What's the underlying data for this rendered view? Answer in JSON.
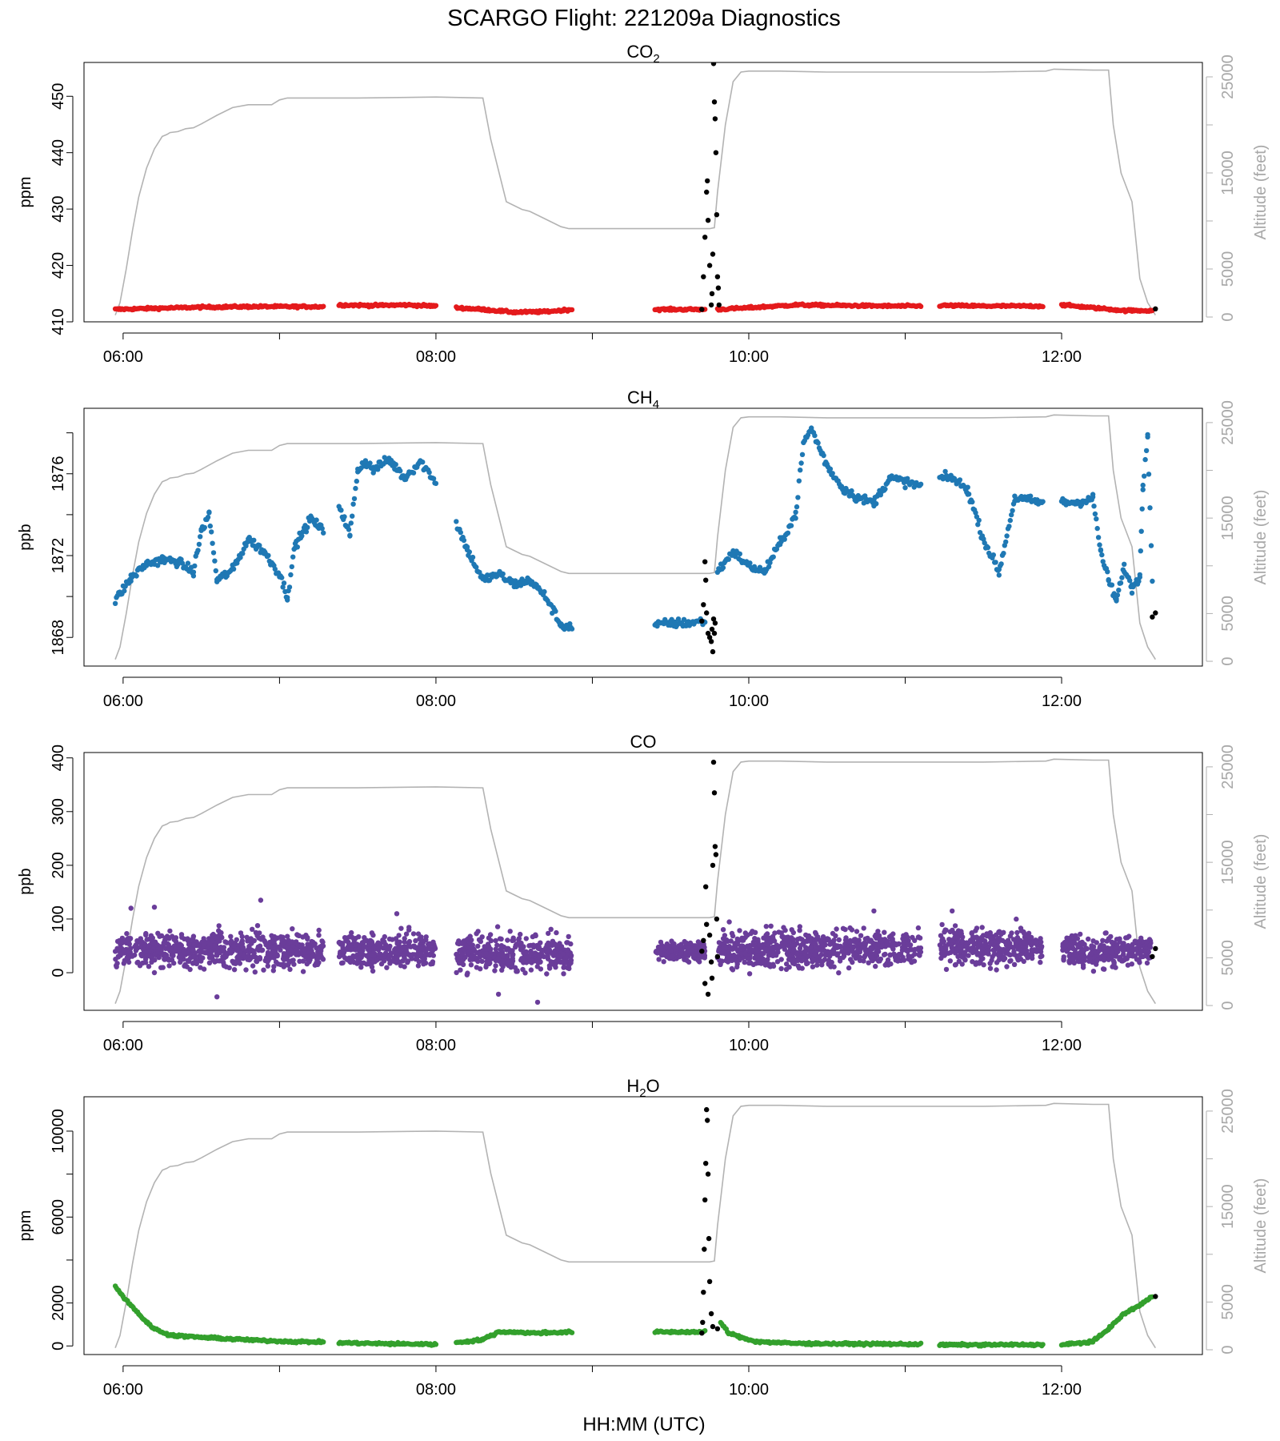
{
  "page": {
    "title": "SCARGO Flight: 221209a  Diagnostics",
    "xlabel": "HH:MM (UTC)",
    "x_ticks": [
      "06:00",
      "08:00",
      "10:00",
      "12:00"
    ],
    "alt_axis_label": "Altitude (feet)",
    "alt_ticks": [
      "0",
      "5000",
      "15000",
      "25000"
    ]
  },
  "colors": {
    "co2": "#e41a1c",
    "ch4": "#1f78b4",
    "co": "#6a3d9a",
    "h2o": "#33a02c",
    "flagged": "#000000",
    "altitude": "#b3b3b3"
  },
  "chart_data": [
    {
      "type": "scatter",
      "title_main": "CO",
      "title_sub": "2",
      "ylabel": "ppm",
      "ylim": [
        410,
        456
      ],
      "yticks": [
        410,
        420,
        430,
        440,
        450
      ],
      "xlim_hours": [
        5.75,
        12.9
      ],
      "series": [
        {
          "name": "CO2",
          "color": "#e41a1c",
          "segments": [
            {
              "x": [
                5.95,
                6.2,
                6.5,
                6.8,
                7.1,
                7.28
              ],
              "y": [
                412.2,
                412.4,
                412.6,
                412.7,
                412.7,
                412.7
              ]
            },
            {
              "x": [
                7.38,
                7.6,
                7.8,
                8.0
              ],
              "y": [
                413.0,
                412.9,
                413.0,
                412.8
              ]
            },
            {
              "x": [
                8.13,
                8.3,
                8.5,
                8.7,
                8.87
              ],
              "y": [
                412.5,
                412.2,
                411.7,
                411.8,
                412.2
              ]
            },
            {
              "x": [
                9.4,
                9.6,
                9.72
              ],
              "y": [
                412.2,
                412.2,
                412.2
              ]
            },
            {
              "x": [
                9.8,
                10.0,
                10.3,
                10.6,
                10.9,
                11.1
              ],
              "y": [
                412.2,
                412.5,
                413.0,
                412.9,
                412.8,
                412.8
              ]
            },
            {
              "x": [
                11.22,
                11.5,
                11.88
              ],
              "y": [
                412.9,
                412.8,
                412.8
              ]
            },
            {
              "x": [
                12.0,
                12.2,
                12.4,
                12.58
              ],
              "y": [
                413.0,
                412.5,
                412.0,
                412.0
              ]
            }
          ]
        },
        {
          "name": "flagged",
          "color": "#000000",
          "points": [
            [
              9.7,
              412.2
            ],
            [
              9.71,
              418
            ],
            [
              9.72,
              425
            ],
            [
              9.73,
              433
            ],
            [
              9.735,
              435
            ],
            [
              9.74,
              428
            ],
            [
              9.75,
              420
            ],
            [
              9.76,
              413
            ],
            [
              9.765,
              415
            ],
            [
              9.77,
              422
            ],
            [
              9.775,
              455.8
            ],
            [
              9.78,
              449
            ],
            [
              9.785,
              446
            ],
            [
              9.79,
              440
            ],
            [
              9.795,
              429
            ],
            [
              9.8,
              418
            ],
            [
              9.805,
              416
            ],
            [
              9.81,
              413
            ],
            [
              12.6,
              412.3
            ]
          ]
        }
      ]
    },
    {
      "type": "scatter",
      "title_main": "CH",
      "title_sub": "4",
      "ylabel": "ppb",
      "ylim": [
        1866.6,
        1879.2
      ],
      "yticks": [
        1868,
        1872,
        1876
      ],
      "ytick_minor": [
        1870,
        1874,
        1878
      ],
      "xlim_hours": [
        5.75,
        12.9
      ],
      "series": [
        {
          "name": "CH4",
          "color": "#1f78b4",
          "segments": [
            {
              "x": [
                5.95,
                6.05,
                6.15,
                6.25,
                6.35,
                6.45,
                6.5,
                6.55,
                6.6,
                6.7,
                6.8,
                6.9,
                7.0,
                7.05,
                7.1,
                7.2,
                7.28
              ],
              "y": [
                1869.8,
                1870.9,
                1871.6,
                1871.8,
                1871.7,
                1871.2,
                1873.2,
                1874.0,
                1870.8,
                1871.3,
                1872.8,
                1872.2,
                1871.1,
                1870.0,
                1872.5,
                1873.8,
                1873.2
              ]
            },
            {
              "x": [
                7.38,
                7.45,
                7.5,
                7.55,
                7.6,
                7.7,
                7.8,
                7.9,
                8.0
              ],
              "y": [
                1874.5,
                1873.0,
                1876.2,
                1876.6,
                1876.2,
                1876.7,
                1875.8,
                1876.6,
                1875.6
              ]
            },
            {
              "x": [
                8.13,
                8.2,
                8.3,
                8.4,
                8.5,
                8.6,
                8.7,
                8.8,
                8.87
              ],
              "y": [
                1873.6,
                1872.3,
                1870.8,
                1871.1,
                1870.6,
                1870.8,
                1870.0,
                1868.6,
                1868.5
              ]
            },
            {
              "x": [
                9.4,
                9.5,
                9.6,
                9.72
              ],
              "y": [
                1868.6,
                1868.7,
                1868.7,
                1868.8
              ]
            },
            {
              "x": [
                9.8,
                9.9,
                10.0,
                10.1,
                10.2,
                10.3,
                10.35,
                10.4,
                10.5,
                10.6,
                10.7,
                10.8,
                10.9,
                11.0,
                11.1
              ],
              "y": [
                1871.2,
                1872.2,
                1871.5,
                1871.2,
                1872.6,
                1874.0,
                1877.5,
                1878.2,
                1876.4,
                1875.3,
                1874.8,
                1874.6,
                1875.8,
                1875.6,
                1875.4
              ]
            },
            {
              "x": [
                11.22,
                11.3,
                11.4,
                11.5,
                11.6,
                11.7,
                11.88
              ],
              "y": [
                1875.8,
                1875.8,
                1875.2,
                1872.8,
                1871.2,
                1874.8,
                1874.6
              ]
            },
            {
              "x": [
                12.0,
                12.1,
                12.2,
                12.25,
                12.3,
                12.35,
                12.4,
                12.45,
                12.5,
                12.52,
                12.55,
                12.58
              ],
              "y": [
                1874.6,
                1874.6,
                1874.8,
                1872.2,
                1870.8,
                1869.8,
                1871.4,
                1870.4,
                1871.0,
                1875.4,
                1878.0,
                1870.8
              ]
            }
          ]
        },
        {
          "name": "flagged",
          "color": "#000000",
          "points": [
            [
              9.7,
              1868.8
            ],
            [
              9.71,
              1869.6
            ],
            [
              9.72,
              1871.7
            ],
            [
              9.725,
              1870.8
            ],
            [
              9.73,
              1869.2
            ],
            [
              9.74,
              1868.2
            ],
            [
              9.75,
              1868.0
            ],
            [
              9.76,
              1867.8
            ],
            [
              9.765,
              1868.4
            ],
            [
              9.77,
              1867.3
            ],
            [
              9.775,
              1868.9
            ],
            [
              9.78,
              1868.2
            ],
            [
              9.785,
              1868.7
            ],
            [
              12.58,
              1869.0
            ],
            [
              12.6,
              1869.2
            ]
          ]
        }
      ]
    },
    {
      "type": "scatter",
      "title_main": "CO",
      "title_sub": "",
      "ylabel": "ppb",
      "ylim": [
        -70,
        410
      ],
      "yticks": [
        0,
        100,
        200,
        300,
        400
      ],
      "xlim_hours": [
        5.75,
        12.9
      ],
      "series": [
        {
          "name": "CO",
          "color": "#6a3d9a",
          "bands": [
            {
              "x0": 5.95,
              "x1": 7.28,
              "mean": 42,
              "spread": 38
            },
            {
              "x0": 7.38,
              "x1": 8.0,
              "mean": 42,
              "spread": 35
            },
            {
              "x0": 8.13,
              "x1": 8.87,
              "mean": 35,
              "spread": 40
            },
            {
              "x0": 9.4,
              "x1": 9.72,
              "mean": 40,
              "spread": 20
            },
            {
              "x0": 9.8,
              "x1": 11.1,
              "mean": 45,
              "spread": 40
            },
            {
              "x0": 11.22,
              "x1": 11.88,
              "mean": 48,
              "spread": 40
            },
            {
              "x0": 12.0,
              "x1": 12.58,
              "mean": 40,
              "spread": 35
            }
          ],
          "outliers": [
            [
              6.88,
              135
            ],
            [
              6.6,
              -45
            ],
            [
              8.65,
              -55
            ],
            [
              8.4,
              -40
            ],
            [
              6.05,
              120
            ],
            [
              6.2,
              122
            ],
            [
              7.75,
              110
            ],
            [
              10.8,
              115
            ],
            [
              11.3,
              115
            ]
          ]
        },
        {
          "name": "flagged",
          "color": "#000000",
          "points": [
            [
              9.7,
              40
            ],
            [
              9.71,
              60
            ],
            [
              9.72,
              -20
            ],
            [
              9.725,
              160
            ],
            [
              9.73,
              90
            ],
            [
              9.74,
              -40
            ],
            [
              9.75,
              70
            ],
            [
              9.76,
              20
            ],
            [
              9.765,
              -10
            ],
            [
              9.77,
              200
            ],
            [
              9.775,
              392
            ],
            [
              9.78,
              335
            ],
            [
              9.785,
              235
            ],
            [
              9.79,
              220
            ],
            [
              9.795,
              100
            ],
            [
              9.8,
              30
            ],
            [
              12.58,
              30
            ],
            [
              12.6,
              45
            ]
          ]
        }
      ]
    },
    {
      "type": "scatter",
      "title_main": "H",
      "title_sub": "2",
      "title_tail": "O",
      "ylabel": "ppm",
      "ylim": [
        -400,
        11600
      ],
      "yticks": [
        0,
        2000,
        6000,
        10000
      ],
      "ytick_minor": [
        4000,
        8000
      ],
      "xlim_hours": [
        5.75,
        12.9
      ],
      "series": [
        {
          "name": "H2O",
          "color": "#33a02c",
          "segments": [
            {
              "x": [
                5.95,
                6.0,
                6.05,
                6.1,
                6.15,
                6.2,
                6.3,
                6.4,
                6.5,
                6.7,
                6.9,
                7.1,
                7.28
              ],
              "y": [
                2800,
                2300,
                1900,
                1500,
                1100,
                800,
                500,
                450,
                400,
                320,
                250,
                200,
                180
              ]
            },
            {
              "x": [
                7.38,
                7.7,
                8.0
              ],
              "y": [
                150,
                100,
                80
              ]
            },
            {
              "x": [
                8.13,
                8.3,
                8.4,
                8.5,
                8.6,
                8.87
              ],
              "y": [
                150,
                300,
                650,
                650,
                600,
                650
              ]
            },
            {
              "x": [
                9.4,
                9.72
              ],
              "y": [
                650,
                650
              ]
            },
            {
              "x": [
                9.82,
                9.87,
                9.95,
                10.05,
                10.3,
                10.6,
                11.1
              ],
              "y": [
                1100,
                600,
                400,
                200,
                120,
                100,
                80
              ]
            },
            {
              "x": [
                11.22,
                11.88
              ],
              "y": [
                50,
                60
              ]
            },
            {
              "x": [
                12.0,
                12.2,
                12.3,
                12.4,
                12.5,
                12.58
              ],
              "y": [
                50,
                200,
                800,
                1500,
                1900,
                2300
              ]
            }
          ]
        },
        {
          "name": "flagged",
          "color": "#000000",
          "points": [
            [
              9.7,
              600
            ],
            [
              9.705,
              1100
            ],
            [
              9.71,
              2500
            ],
            [
              9.715,
              4500
            ],
            [
              9.72,
              6800
            ],
            [
              9.725,
              8500
            ],
            [
              9.73,
              11000
            ],
            [
              9.735,
              10500
            ],
            [
              9.74,
              8000
            ],
            [
              9.745,
              5000
            ],
            [
              9.75,
              3000
            ],
            [
              9.76,
              1500
            ],
            [
              9.77,
              900
            ],
            [
              9.8,
              800
            ],
            [
              12.6,
              2300
            ]
          ]
        }
      ]
    }
  ],
  "altitude": {
    "name": "Altitude (feet)",
    "ylim": [
      -500,
      26500
    ],
    "hours": [
      5.95,
      5.98,
      6.02,
      6.06,
      6.1,
      6.15,
      6.2,
      6.25,
      6.28,
      6.3,
      6.35,
      6.4,
      6.45,
      6.5,
      6.6,
      6.7,
      6.8,
      6.95,
      7.0,
      7.05,
      7.5,
      8.0,
      8.3,
      8.35,
      8.45,
      8.55,
      8.6,
      8.7,
      8.8,
      8.85,
      9.0,
      9.5,
      9.75,
      9.78,
      9.8,
      9.85,
      9.9,
      9.95,
      10.0,
      10.2,
      10.5,
      11.0,
      11.5,
      11.9,
      11.95,
      12.2,
      12.3,
      12.33,
      12.38,
      12.45,
      12.5,
      12.55,
      12.6
    ],
    "feet": [
      200,
      1500,
      5000,
      9000,
      12500,
      15500,
      17500,
      18800,
      19000,
      19200,
      19300,
      19600,
      19700,
      20100,
      21000,
      21800,
      22100,
      22100,
      22600,
      22800,
      22800,
      22900,
      22800,
      18500,
      12000,
      11200,
      11000,
      10200,
      9400,
      9200,
      9200,
      9200,
      9200,
      9300,
      13000,
      20000,
      24500,
      25500,
      25600,
      25600,
      25500,
      25500,
      25500,
      25600,
      25800,
      25700,
      25700,
      20000,
      15000,
      12000,
      4000,
      1500,
      200
    ]
  }
}
